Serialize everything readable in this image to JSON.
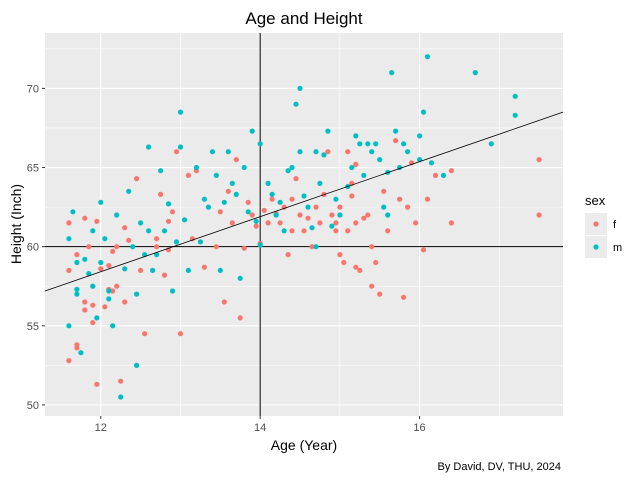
{
  "chart_data": {
    "type": "scatter",
    "title": "Age and Height",
    "xlabel": "Age (Year)",
    "ylabel": "Height (Inch)",
    "caption": "By David, DV, THU, 2024",
    "xlim": [
      11.3,
      17.8
    ],
    "ylim": [
      49.3,
      73.5
    ],
    "x_ticks": [
      12,
      14,
      16
    ],
    "y_ticks": [
      50,
      55,
      60,
      65,
      70
    ],
    "grid": true,
    "legend": {
      "title": "sex",
      "placement": "right",
      "entries": [
        "f",
        "m"
      ]
    },
    "colors": {
      "f": "#F8766D",
      "m": "#00BFC4"
    },
    "reference_lines": {
      "vline_x": 14,
      "hline_y": 60
    },
    "regression_line": [
      [
        11.3,
        57.2
      ],
      [
        17.8,
        68.5
      ]
    ],
    "series": [
      {
        "name": "f",
        "points": [
          [
            11.6,
            52.8
          ],
          [
            11.7,
            53.8
          ],
          [
            11.7,
            53.6
          ],
          [
            11.8,
            56.0
          ],
          [
            11.9,
            55.2
          ],
          [
            11.8,
            56.5
          ],
          [
            11.9,
            56.3
          ],
          [
            11.95,
            51.3
          ],
          [
            11.6,
            61.5
          ],
          [
            11.8,
            61.8
          ],
          [
            11.95,
            61.6
          ],
          [
            11.6,
            58.5
          ],
          [
            11.7,
            59.5
          ],
          [
            11.85,
            60.0
          ],
          [
            12.0,
            58.6
          ],
          [
            11.9,
            57.5
          ],
          [
            12.1,
            57.3
          ],
          [
            12.05,
            56.2
          ],
          [
            12.2,
            57.5
          ],
          [
            12.15,
            57.2
          ],
          [
            12.3,
            56.5
          ],
          [
            12.25,
            51.5
          ],
          [
            12.15,
            59.7
          ],
          [
            12.2,
            60.0
          ],
          [
            12.3,
            61.2
          ],
          [
            12.35,
            60.4
          ],
          [
            12.1,
            58.8
          ],
          [
            12.45,
            64.3
          ],
          [
            12.5,
            58.5
          ],
          [
            12.55,
            54.5
          ],
          [
            12.7,
            60.5
          ],
          [
            12.75,
            63.3
          ],
          [
            12.85,
            61.6
          ],
          [
            12.9,
            62.2
          ],
          [
            12.95,
            66.0
          ],
          [
            13.0,
            54.5
          ],
          [
            12.8,
            58.2
          ],
          [
            12.85,
            59.8
          ],
          [
            13.1,
            64.5
          ],
          [
            13.15,
            60.5
          ],
          [
            13.3,
            58.7
          ],
          [
            13.45,
            60.0
          ],
          [
            13.5,
            62.2
          ],
          [
            13.6,
            63.5
          ],
          [
            13.65,
            61.5
          ],
          [
            13.7,
            65.5
          ],
          [
            13.55,
            56.5
          ],
          [
            13.75,
            55.5
          ],
          [
            13.8,
            59.9
          ],
          [
            13.85,
            62.8
          ],
          [
            13.9,
            62.0
          ],
          [
            13.95,
            61.3
          ],
          [
            14.0,
            60.2
          ],
          [
            14.05,
            62.3
          ],
          [
            14.1,
            61.5
          ],
          [
            14.15,
            63.0
          ],
          [
            14.2,
            62.1
          ],
          [
            14.25,
            61.5
          ],
          [
            14.3,
            62.5
          ],
          [
            14.35,
            59.5
          ],
          [
            14.4,
            63.0
          ],
          [
            14.45,
            64.3
          ],
          [
            14.5,
            62.0
          ],
          [
            14.55,
            61.0
          ],
          [
            14.6,
            61.8
          ],
          [
            14.65,
            60.0
          ],
          [
            14.7,
            62.5
          ],
          [
            14.75,
            61.5
          ],
          [
            14.8,
            63.3
          ],
          [
            14.85,
            66.0
          ],
          [
            14.9,
            62.0
          ],
          [
            14.95,
            61.0
          ],
          [
            15.0,
            62.5
          ],
          [
            15.05,
            59.0
          ],
          [
            15.1,
            61.0
          ],
          [
            15.15,
            63.2
          ],
          [
            15.2,
            61.5
          ],
          [
            15.25,
            58.5
          ],
          [
            15.3,
            61.8
          ],
          [
            15.35,
            62.0
          ],
          [
            15.4,
            60.0
          ],
          [
            15.45,
            59.0
          ],
          [
            15.5,
            57.0
          ],
          [
            15.55,
            63.5
          ],
          [
            15.6,
            61.0
          ],
          [
            15.7,
            66.7
          ],
          [
            15.75,
            63.0
          ],
          [
            15.8,
            56.8
          ],
          [
            15.85,
            62.5
          ],
          [
            15.9,
            65.3
          ],
          [
            15.95,
            61.5
          ],
          [
            16.05,
            59.8
          ],
          [
            16.1,
            63.0
          ],
          [
            16.2,
            64.5
          ],
          [
            16.4,
            64.8
          ],
          [
            16.4,
            61.5
          ],
          [
            17.5,
            65.5
          ],
          [
            17.5,
            62.0
          ],
          [
            15.2,
            65.2
          ],
          [
            15.4,
            57.5
          ],
          [
            15.2,
            58.7
          ],
          [
            15.0,
            59.5
          ],
          [
            14.4,
            61.0
          ],
          [
            15.1,
            66.0
          ],
          [
            15.15,
            64.0
          ],
          [
            14.95,
            61.5
          ],
          [
            13.2,
            64.8
          ],
          [
            12.7,
            60.0
          ]
        ]
      },
      {
        "name": "m",
        "points": [
          [
            11.6,
            55.0
          ],
          [
            11.6,
            60.5
          ],
          [
            11.65,
            62.2
          ],
          [
            11.7,
            57.0
          ],
          [
            11.7,
            57.3
          ],
          [
            11.75,
            53.3
          ],
          [
            11.7,
            59.0
          ],
          [
            11.8,
            59.2
          ],
          [
            11.85,
            58.3
          ],
          [
            11.9,
            61.0
          ],
          [
            11.9,
            57.5
          ],
          [
            11.95,
            55.5
          ],
          [
            12.0,
            62.8
          ],
          [
            12.0,
            59.0
          ],
          [
            12.05,
            60.5
          ],
          [
            12.1,
            56.7
          ],
          [
            12.1,
            57.2
          ],
          [
            12.15,
            55.0
          ],
          [
            12.2,
            62.0
          ],
          [
            12.25,
            50.5
          ],
          [
            12.3,
            58.6
          ],
          [
            12.35,
            63.5
          ],
          [
            12.4,
            60.0
          ],
          [
            12.45,
            52.5
          ],
          [
            12.45,
            57.0
          ],
          [
            12.5,
            61.5
          ],
          [
            12.55,
            59.5
          ],
          [
            12.6,
            66.3
          ],
          [
            12.6,
            61.0
          ],
          [
            12.65,
            58.5
          ],
          [
            12.7,
            59.5
          ],
          [
            12.75,
            64.8
          ],
          [
            12.8,
            61.0
          ],
          [
            12.85,
            62.7
          ],
          [
            12.9,
            57.2
          ],
          [
            12.95,
            60.3
          ],
          [
            13.0,
            66.3
          ],
          [
            13.0,
            68.5
          ],
          [
            13.05,
            61.7
          ],
          [
            13.1,
            58.5
          ],
          [
            13.2,
            65.0
          ],
          [
            13.25,
            60.3
          ],
          [
            13.3,
            63.0
          ],
          [
            13.35,
            62.5
          ],
          [
            13.4,
            66.0
          ],
          [
            13.45,
            64.5
          ],
          [
            13.5,
            58.5
          ],
          [
            13.55,
            62.8
          ],
          [
            13.6,
            66.0
          ],
          [
            13.65,
            64.0
          ],
          [
            13.7,
            63.3
          ],
          [
            13.75,
            58.0
          ],
          [
            13.8,
            65.0
          ],
          [
            13.85,
            62.2
          ],
          [
            13.9,
            67.3
          ],
          [
            13.95,
            61.6
          ],
          [
            14.0,
            66.5
          ],
          [
            14.0,
            60.1
          ],
          [
            14.1,
            64.0
          ],
          [
            14.15,
            63.3
          ],
          [
            14.2,
            62.0
          ],
          [
            14.25,
            62.8
          ],
          [
            14.3,
            61.0
          ],
          [
            14.35,
            64.8
          ],
          [
            14.4,
            65.0
          ],
          [
            14.45,
            69.0
          ],
          [
            14.5,
            70.0
          ],
          [
            14.5,
            66.0
          ],
          [
            14.55,
            63.2
          ],
          [
            14.6,
            62.5
          ],
          [
            14.65,
            61.2
          ],
          [
            14.7,
            66.0
          ],
          [
            14.75,
            64.0
          ],
          [
            14.8,
            65.8
          ],
          [
            14.85,
            67.3
          ],
          [
            14.9,
            61.3
          ],
          [
            14.95,
            63.0
          ],
          [
            15.0,
            62.0
          ],
          [
            15.1,
            63.8
          ],
          [
            15.15,
            65.0
          ],
          [
            15.2,
            67.0
          ],
          [
            15.25,
            66.5
          ],
          [
            15.3,
            64.5
          ],
          [
            15.35,
            66.5
          ],
          [
            15.4,
            66.0
          ],
          [
            15.45,
            66.5
          ],
          [
            15.5,
            65.5
          ],
          [
            15.55,
            62.5
          ],
          [
            15.6,
            64.7
          ],
          [
            15.65,
            71.0
          ],
          [
            15.7,
            67.3
          ],
          [
            15.75,
            65.0
          ],
          [
            15.8,
            66.5
          ],
          [
            15.85,
            66.0
          ],
          [
            16.0,
            67.0
          ],
          [
            16.05,
            68.5
          ],
          [
            16.1,
            72.0
          ],
          [
            16.15,
            65.3
          ],
          [
            16.3,
            64.5
          ],
          [
            16.7,
            71.0
          ],
          [
            16.9,
            66.5
          ],
          [
            17.2,
            69.5
          ],
          [
            17.2,
            68.3
          ],
          [
            16.0,
            65.5
          ],
          [
            15.6,
            62.0
          ],
          [
            14.7,
            60.0
          ]
        ]
      }
    ]
  }
}
